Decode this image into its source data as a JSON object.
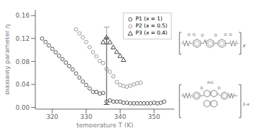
{
  "chart_data": {
    "type": "scatter",
    "xlabel": "temperature T (K)",
    "ylabel": "biaxiality parameter η",
    "xlim": [
      315,
      356
    ],
    "ylim": [
      -0.003,
      0.17
    ],
    "xticks": [
      320,
      330,
      340,
      350
    ],
    "yticks": [
      {
        "value": 0.0,
        "label": "0.00"
      },
      0.04,
      0.08,
      0.12,
      0.16
    ],
    "legend": "upper right",
    "series": [
      {
        "name": "P1 (x = 1)",
        "color": "#555555",
        "marker": "circle",
        "x": [
          317,
          318,
          319,
          320,
          321,
          322,
          323,
          324,
          325,
          326,
          327,
          328,
          329,
          330,
          331,
          332,
          333,
          334,
          335,
          336,
          337,
          338,
          339,
          340,
          341,
          342,
          343,
          344,
          345,
          346,
          347,
          348,
          349,
          350,
          351,
          352,
          353
        ],
        "values": [
          0.12,
          0.114,
          0.108,
          0.102,
          0.096,
          0.09,
          0.084,
          0.078,
          0.072,
          0.066,
          0.059,
          0.052,
          0.045,
          0.039,
          0.033,
          0.027,
          0.027,
          0.024,
          0.025,
          0.01,
          0.012,
          0.01,
          0.01,
          0.01,
          0.008,
          0.008,
          0.007,
          0.007,
          0.007,
          0.007,
          0.007,
          0.007,
          0.007,
          0.008,
          0.007,
          0.008,
          0.01
        ]
      },
      {
        "name": "P2 (x = 0.5)",
        "color": "#999999",
        "marker": "circle",
        "x": [
          327,
          328,
          329,
          330,
          331,
          332,
          333,
          334,
          335,
          336,
          337,
          338,
          339,
          340,
          341,
          342,
          343,
          344,
          345,
          346
        ],
        "values": [
          0.136,
          0.129,
          0.122,
          0.114,
          0.105,
          0.096,
          0.089,
          0.081,
          0.077,
          0.067,
          0.062,
          0.054,
          0.044,
          0.039,
          0.037,
          0.036,
          0.038,
          0.04,
          0.042,
          0.043
        ],
        "error_bars": {
          "x": [
            336
          ],
          "y": [
            0.125
          ],
          "yerr": [
            0.015
          ]
        }
      },
      {
        "name": "P3 (x = 0.4)",
        "color": "#444444",
        "marker": "triangle",
        "x": [
          335,
          336,
          337,
          338,
          339,
          340,
          341
        ],
        "values": [
          0.114,
          0.122,
          0.114,
          0.105,
          0.097,
          0.09,
          0.083
        ],
        "error_bars": {
          "x": [
            336
          ],
          "y": [
            0.063
          ],
          "yerr": [
            0.058
          ]
        }
      }
    ],
    "annotations": [
      "O  O",
      "O",
      "O",
      "O  O",
      "x",
      "O",
      "H₃C",
      "O",
      "1-x"
    ]
  }
}
